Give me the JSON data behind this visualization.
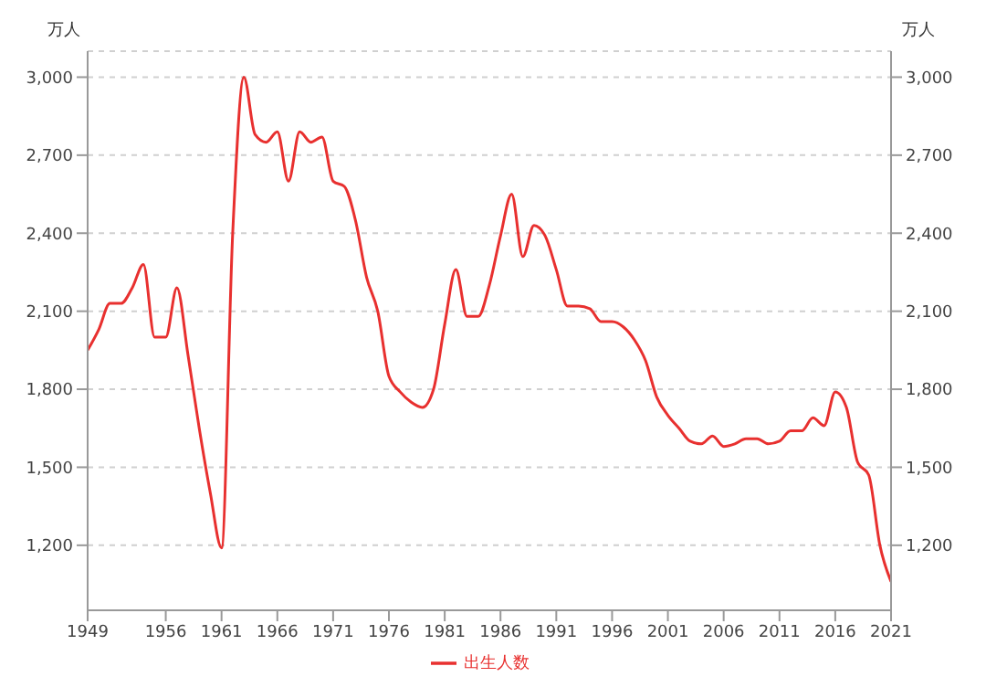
{
  "chart_data": {
    "type": "line",
    "ylabel": "万人",
    "y2label": "万人",
    "x": [
      1949,
      1950,
      1951,
      1952,
      1953,
      1954,
      1955,
      1956,
      1957,
      1958,
      1959,
      1960,
      1961,
      1962,
      1963,
      1964,
      1965,
      1966,
      1967,
      1968,
      1969,
      1970,
      1971,
      1972,
      1973,
      1974,
      1975,
      1976,
      1977,
      1978,
      1979,
      1980,
      1981,
      1982,
      1983,
      1984,
      1985,
      1986,
      1987,
      1988,
      1989,
      1990,
      1991,
      1992,
      1993,
      1994,
      1995,
      1996,
      1997,
      1998,
      1999,
      2000,
      2001,
      2002,
      2003,
      2004,
      2005,
      2006,
      2007,
      2008,
      2009,
      2010,
      2011,
      2012,
      2013,
      2014,
      2015,
      2016,
      2017,
      2018,
      2019,
      2020,
      2021
    ],
    "series": [
      {
        "name": "出生人数",
        "color": "#e8302f",
        "values": [
          1950,
          2030,
          2130,
          2130,
          2190,
          2280,
          2000,
          2000,
          2190,
          1930,
          1650,
          1400,
          1190,
          2400,
          3000,
          2780,
          2750,
          2790,
          2600,
          2790,
          2750,
          2770,
          2600,
          2580,
          2450,
          2230,
          2100,
          1850,
          1790,
          1750,
          1730,
          1800,
          2050,
          2260,
          2080,
          2080,
          2200,
          2390,
          2550,
          2310,
          2430,
          2390,
          2260,
          2120,
          2120,
          2110,
          2060,
          2060,
          2040,
          1990,
          1910,
          1770,
          1700,
          1650,
          1600,
          1590,
          1620,
          1580,
          1590,
          1610,
          1610,
          1590,
          1600,
          1640,
          1640,
          1690,
          1660,
          1790,
          1730,
          1520,
          1470,
          1200,
          1060
        ]
      }
    ],
    "xlim": [
      1949,
      2021
    ],
    "xticks": [
      1949,
      1956,
      1961,
      1966,
      1971,
      1976,
      1981,
      1986,
      1991,
      1996,
      2001,
      2006,
      2011,
      2016,
      2021
    ],
    "ylim": [
      950,
      3100
    ],
    "yticks": [
      {
        "value": 1200,
        "label": "1,200"
      },
      {
        "value": 1500,
        "label": "1,500"
      },
      {
        "value": 1800,
        "label": "1,800"
      },
      {
        "value": 2100,
        "label": "2,100"
      },
      {
        "value": 2400,
        "label": "2,400"
      },
      {
        "value": 2700,
        "label": "2,700"
      },
      {
        "value": 3000,
        "label": "3,000"
      }
    ],
    "y2lim": [
      950,
      3100
    ],
    "y2ticks": [
      {
        "value": 1200,
        "label": "1,200"
      },
      {
        "value": 1500,
        "label": "1,500"
      },
      {
        "value": 1800,
        "label": "1,800"
      },
      {
        "value": 2100,
        "label": "2,100"
      },
      {
        "value": 2400,
        "label": "2,400"
      },
      {
        "value": 2700,
        "label": "2,700"
      },
      {
        "value": 3000,
        "label": "3,000"
      }
    ],
    "grid": "y",
    "legend": "bottom",
    "marker": "none",
    "line_style": "solid"
  }
}
